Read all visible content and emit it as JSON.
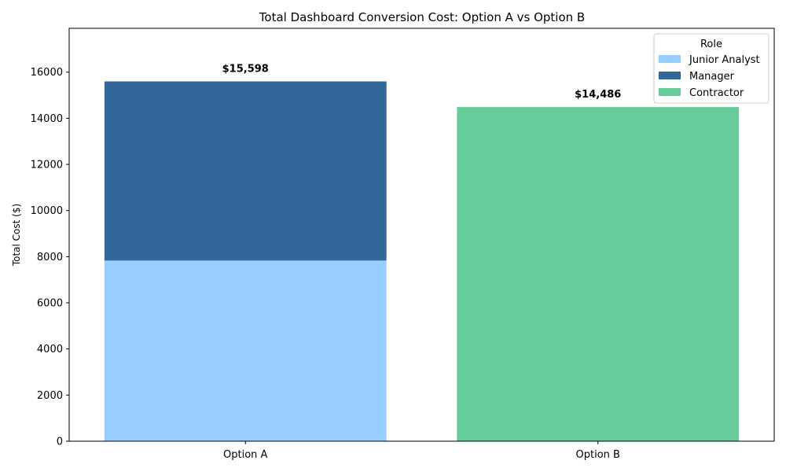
{
  "chart_data": {
    "type": "bar",
    "stacked": true,
    "title": "Total Dashboard Conversion Cost: Option A vs Option B",
    "xlabel": "",
    "ylabel": "Total Cost ($)",
    "ylim": [
      0,
      17900
    ],
    "yticks": [
      0,
      2000,
      4000,
      6000,
      8000,
      10000,
      12000,
      14000,
      16000
    ],
    "categories": [
      "Option A",
      "Option B"
    ],
    "series": [
      {
        "name": "Junior Analyst",
        "color": "#99ccff",
        "values": [
          7830,
          0
        ]
      },
      {
        "name": "Manager",
        "color": "#336699",
        "values": [
          7768,
          0
        ]
      },
      {
        "name": "Contractor",
        "color": "#66cc99",
        "values": [
          0,
          14486
        ]
      }
    ],
    "totals": [
      15598,
      14486
    ],
    "total_labels": [
      "$15,598",
      "$14,486"
    ],
    "legend": {
      "title": "Role",
      "position": "top-right"
    },
    "grid": false
  }
}
